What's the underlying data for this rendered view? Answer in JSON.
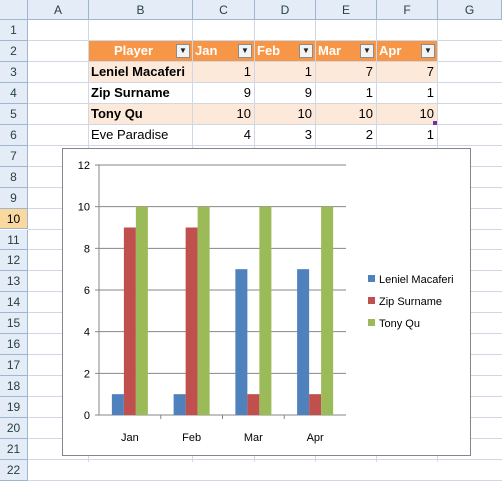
{
  "sheet": {
    "columns": [
      "A",
      "B",
      "C",
      "D",
      "E",
      "F",
      "G"
    ],
    "rows": [
      "1",
      "2",
      "3",
      "4",
      "5",
      "6",
      "7",
      "8",
      "9",
      "10",
      "11",
      "12",
      "13",
      "14",
      "15",
      "16",
      "17",
      "18",
      "19",
      "20",
      "21",
      "22"
    ],
    "selected_row": "10"
  },
  "table": {
    "headers": [
      "Player",
      "Jan",
      "Feb",
      "Mar",
      "Apr"
    ],
    "rows": [
      [
        "Leniel Macaferi",
        "1",
        "1",
        "7",
        "7"
      ],
      [
        "Zip Surname",
        "9",
        "9",
        "1",
        "1"
      ],
      [
        "Tony Qu",
        "10",
        "10",
        "10",
        "10"
      ],
      [
        "Eve Paradise",
        "4",
        "3",
        "2",
        "1"
      ]
    ],
    "dropdown_icon": "filter-dropdown-arrow",
    "colors": {
      "header": "#f79646",
      "band": "#fde9d9"
    }
  },
  "chart_data": {
    "type": "bar",
    "categories": [
      "Jan",
      "Feb",
      "Mar",
      "Apr"
    ],
    "series": [
      {
        "name": "Leniel Macaferi",
        "values": [
          1,
          1,
          7,
          7
        ],
        "color": "#4f81bd"
      },
      {
        "name": "Zip Surname",
        "values": [
          9,
          9,
          1,
          1
        ],
        "color": "#c0504d"
      },
      {
        "name": "Tony Qu",
        "values": [
          10,
          10,
          10,
          10
        ],
        "color": "#9bbb59"
      }
    ],
    "yticks": [
      "0",
      "2",
      "4",
      "6",
      "8",
      "10",
      "12"
    ],
    "ylim": [
      0,
      12
    ],
    "grid": true,
    "legend": "right"
  }
}
